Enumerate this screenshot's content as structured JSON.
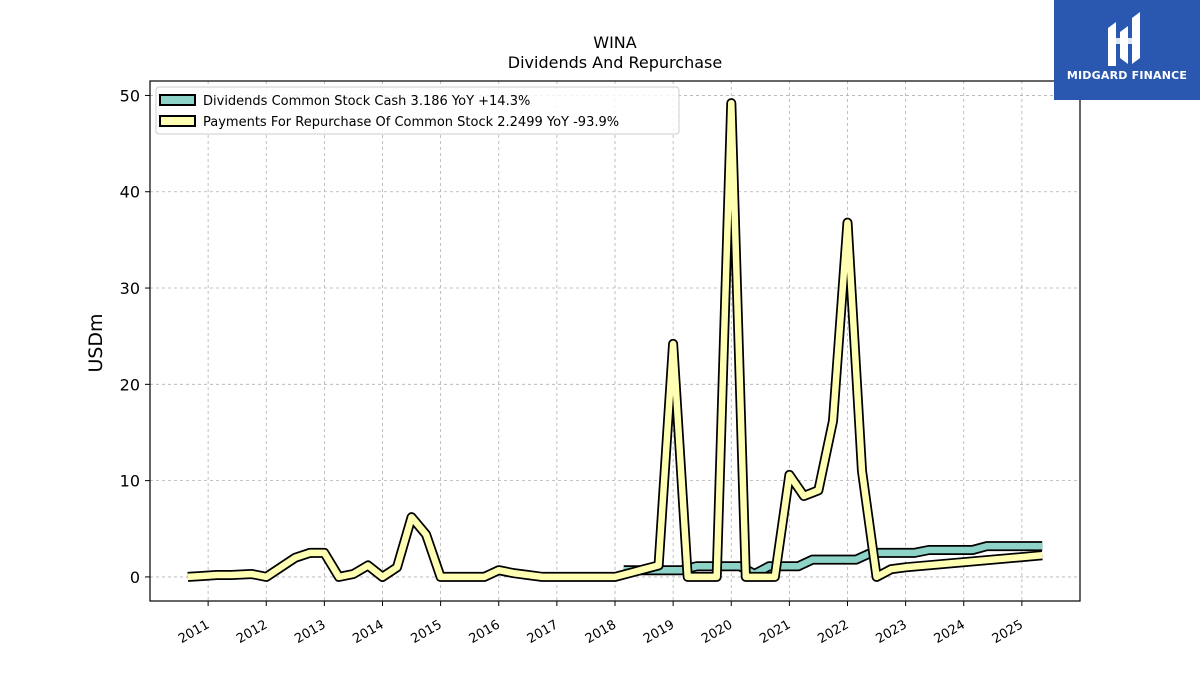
{
  "logo": {
    "text": "MIDGARD FINANCE",
    "icon": "midgard-logo-icon",
    "color": "#2a57b0"
  },
  "chart_data": {
    "type": "line",
    "title": "WINA",
    "subtitle": "Dividends And Repurchase",
    "ylabel": "USDm",
    "xlabel": "",
    "xlim": [
      2010.0,
      2026.0
    ],
    "ylim": [
      -2.5,
      51.5
    ],
    "yticks": [
      0,
      10,
      20,
      30,
      40,
      50
    ],
    "xticks": [
      2011,
      2012,
      2013,
      2014,
      2015,
      2016,
      2017,
      2018,
      2019,
      2020,
      2021,
      2022,
      2023,
      2024,
      2025
    ],
    "grid": true,
    "legend_position": "top-left",
    "series": [
      {
        "name": "Dividends Common Stock Cash  3.186 YoY +14.3%",
        "color": "#8dd3c7",
        "x": [
          2018.15,
          2018.4,
          2018.65,
          2018.9,
          2019.15,
          2019.4,
          2019.65,
          2019.9,
          2020.15,
          2020.4,
          2020.65,
          2020.9,
          2021.15,
          2021.4,
          2021.65,
          2021.9,
          2022.15,
          2022.4,
          2022.65,
          2022.9,
          2023.15,
          2023.4,
          2023.65,
          2023.9,
          2024.15,
          2024.4,
          2024.65,
          2024.9,
          2025.15,
          2025.35
        ],
        "y": [
          0.7,
          0.7,
          0.7,
          0.7,
          0.7,
          1.1,
          1.1,
          1.1,
          1.1,
          0.3,
          1.1,
          1.1,
          1.1,
          1.8,
          1.8,
          1.8,
          1.8,
          2.5,
          2.5,
          2.5,
          2.5,
          2.8,
          2.8,
          2.8,
          2.8,
          3.2,
          3.2,
          3.2,
          3.2,
          3.2
        ]
      },
      {
        "name": "Payments For Repurchase Of Common Stock  2.2499 YoY -93.9%",
        "color": "#ffffb3",
        "x": [
          2010.65,
          2010.9,
          2011.15,
          2011.4,
          2011.75,
          2012.0,
          2012.25,
          2012.5,
          2012.75,
          2013.0,
          2013.25,
          2013.5,
          2013.75,
          2014.0,
          2014.25,
          2014.5,
          2014.75,
          2015.0,
          2015.25,
          2015.5,
          2015.75,
          2016.0,
          2016.25,
          2016.5,
          2016.75,
          2017.0,
          2017.25,
          2017.5,
          2017.75,
          2018.0,
          2018.25,
          2018.5,
          2018.75,
          2019.0,
          2019.25,
          2019.5,
          2019.75,
          2020.0,
          2020.25,
          2020.5,
          2020.75,
          2021.0,
          2021.25,
          2021.5,
          2021.75,
          2022.0,
          2022.25,
          2022.5,
          2022.75,
          2023.0,
          2025.35
        ],
        "y": [
          0.0,
          0.1,
          0.2,
          0.2,
          0.3,
          0.0,
          1.0,
          2.0,
          2.5,
          2.5,
          0.0,
          0.3,
          1.2,
          0.0,
          1.0,
          6.2,
          4.4,
          0.0,
          0.0,
          0.0,
          0.0,
          0.7,
          0.4,
          0.2,
          0.0,
          0.0,
          0.0,
          0.0,
          0.0,
          0.0,
          0.4,
          0.8,
          1.2,
          24.2,
          0.0,
          0.0,
          0.0,
          49.2,
          0.0,
          0.0,
          0.0,
          10.6,
          8.4,
          9.0,
          16.2,
          36.8,
          11.0,
          0.0,
          0.8,
          1.0,
          2.25
        ]
      }
    ]
  }
}
